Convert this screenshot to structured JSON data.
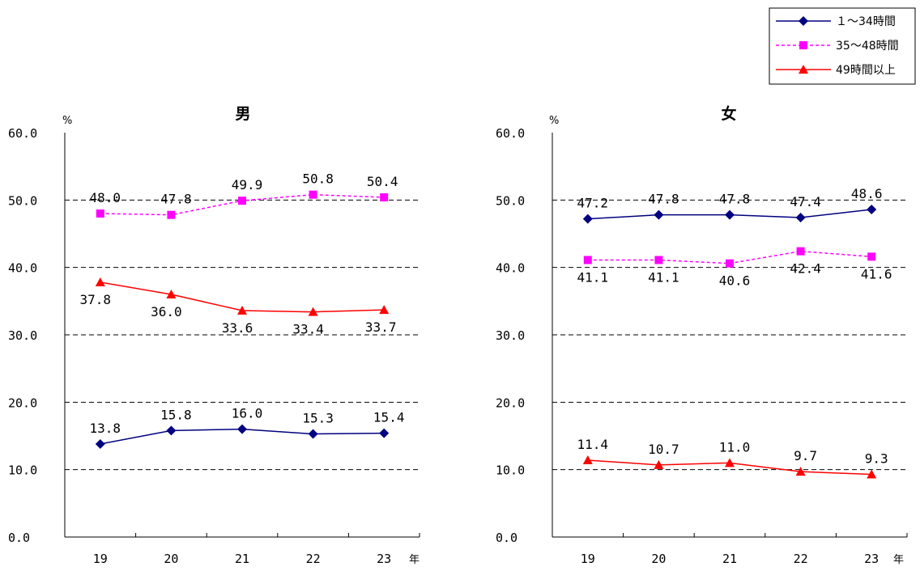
{
  "legend": {
    "placement": "top-right",
    "items": [
      {
        "label": "１～34時間",
        "color": "#000080",
        "dash": "solid",
        "marker": "diamond"
      },
      {
        "label": "35～48時間",
        "color": "#ff00ff",
        "dash": "dotted",
        "marker": "square"
      },
      {
        "label": "49時間以上",
        "color": "#ff0000",
        "dash": "solid",
        "marker": "triangle"
      }
    ]
  },
  "chart_data": [
    {
      "type": "line",
      "title": "男",
      "ylabel": "%",
      "xlabel": "年",
      "categories": [
        "19",
        "20",
        "21",
        "22",
        "23"
      ],
      "ylim": [
        0,
        60
      ],
      "yticks": [
        "0.0",
        "10.0",
        "20.0",
        "30.0",
        "40.0",
        "50.0",
        "60.0"
      ],
      "grid": true,
      "series": [
        {
          "name": "１～34時間",
          "values": [
            13.8,
            15.8,
            16.0,
            15.3,
            15.4
          ],
          "labels": [
            "13.8",
            "15.8",
            "16.0",
            "15.3",
            "15.4"
          ]
        },
        {
          "name": "35～48時間",
          "values": [
            48.0,
            47.8,
            49.9,
            50.8,
            50.4
          ],
          "labels": [
            "48.0",
            "47.8",
            "49.9",
            "50.8",
            "50.4"
          ]
        },
        {
          "name": "49時間以上",
          "values": [
            37.8,
            36.0,
            33.6,
            33.4,
            33.7
          ],
          "labels": [
            "37.8",
            "36.0",
            "33.6",
            "33.4",
            "33.7"
          ]
        }
      ]
    },
    {
      "type": "line",
      "title": "女",
      "ylabel": "%",
      "xlabel": "年",
      "categories": [
        "19",
        "20",
        "21",
        "22",
        "23"
      ],
      "ylim": [
        0,
        60
      ],
      "yticks": [
        "0.0",
        "10.0",
        "20.0",
        "30.0",
        "40.0",
        "50.0",
        "60.0"
      ],
      "grid": true,
      "series": [
        {
          "name": "１～34時間",
          "values": [
            47.2,
            47.8,
            47.8,
            47.4,
            48.6
          ],
          "labels": [
            "47.2",
            "47.8",
            "47.8",
            "47.4",
            "48.6"
          ]
        },
        {
          "name": "35～48時間",
          "values": [
            41.1,
            41.1,
            40.6,
            42.4,
            41.6
          ],
          "labels": [
            "41.1",
            "41.1",
            "40.6",
            "42.4",
            "41.6"
          ]
        },
        {
          "name": "49時間以上",
          "values": [
            11.4,
            10.7,
            11.0,
            9.7,
            9.3
          ],
          "labels": [
            "11.4",
            "10.7",
            "11.0",
            "9.7",
            "9.3"
          ]
        }
      ]
    }
  ]
}
